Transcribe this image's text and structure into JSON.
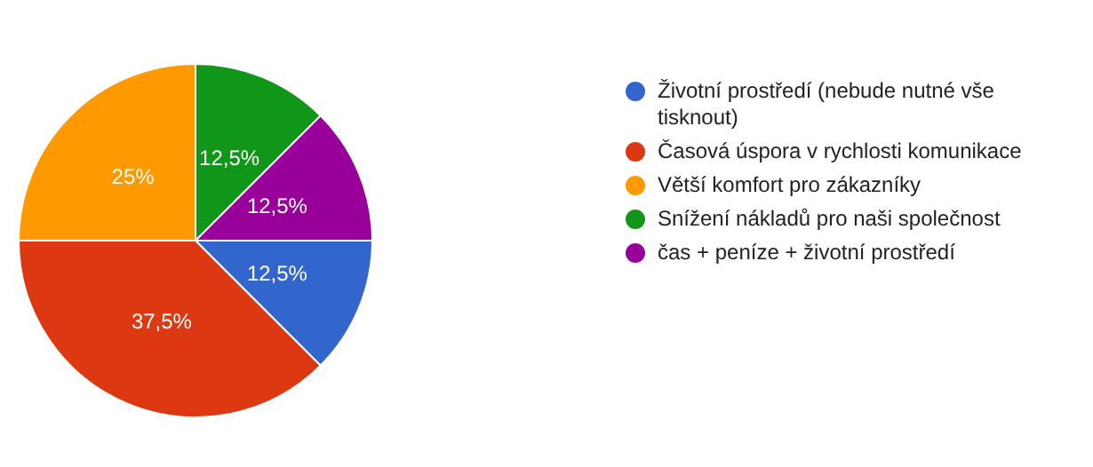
{
  "chart_data": {
    "type": "pie",
    "categories": [
      "Životní prostředí (nebude nutné vše tisknout)",
      "Časová úspora v rychlosti komunikace",
      "Větší komfort pro zákazníky",
      "Snížení nákladů pro naši společnost",
      "čas + peníze + životní prostředí"
    ],
    "values": [
      12.5,
      37.5,
      25,
      12.5,
      12.5
    ],
    "colors": [
      "#3366cc",
      "#dc3912",
      "#ff9900",
      "#109618",
      "#990099"
    ],
    "value_labels": [
      "12,5%",
      "37,5%",
      "25%",
      "12,5%",
      "12,5%"
    ],
    "legend": "right"
  }
}
